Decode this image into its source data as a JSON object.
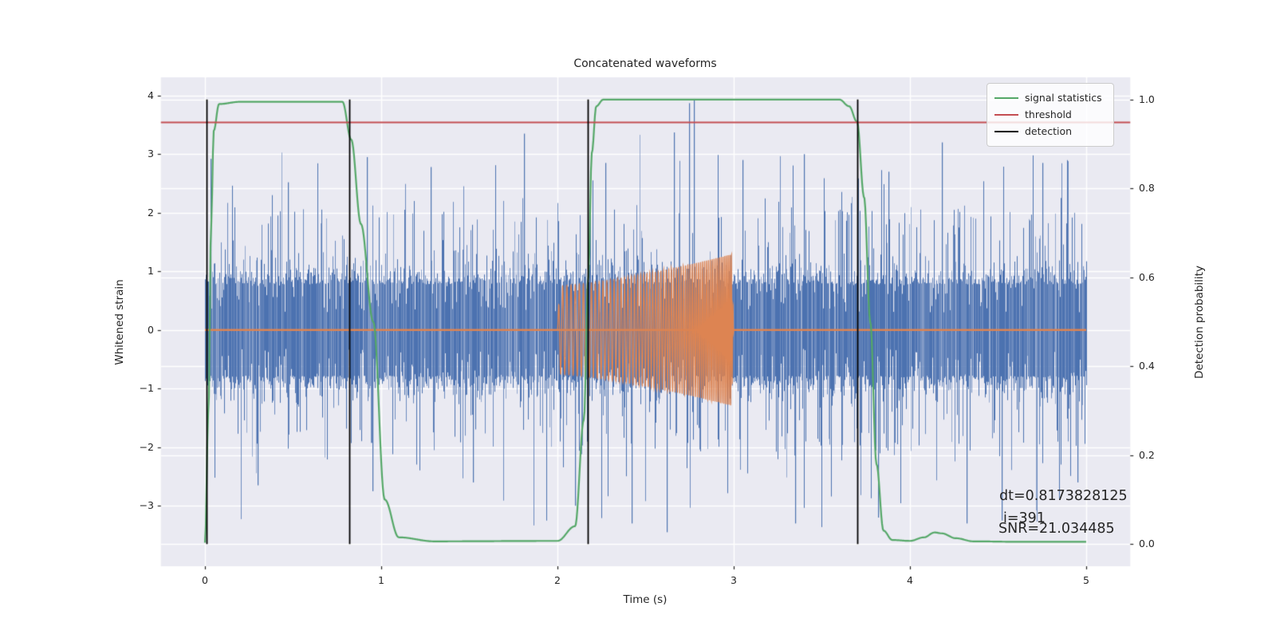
{
  "figure": {
    "title": "Concatenated waveforms",
    "background": "#ffffff",
    "axes_background": "#eaeaf2",
    "grid_color": "#ffffff",
    "text_color": "#262626"
  },
  "axes": {
    "xlabel": "Time (s)",
    "ylabel_left": "Whitened strain",
    "ylabel_right": "Detection probability",
    "x_ticks": [
      0,
      1,
      2,
      3,
      4,
      5
    ],
    "y_ticks_left": [
      4,
      3,
      2,
      1,
      0,
      -1,
      -2,
      -3
    ],
    "y_ticks_right": [
      "1.0",
      "0.8",
      "0.6",
      "0.4",
      "0.2",
      "0.0"
    ],
    "xlim": [
      -0.25,
      5.25
    ],
    "ylim_left": [
      -4.03,
      4.31
    ],
    "ylim_right": [
      -0.05,
      1.05
    ],
    "grid": true
  },
  "legend": {
    "items": [
      {
        "label": "signal statistics",
        "color": "#55a868"
      },
      {
        "label": "threshold",
        "color": "#c44e52"
      },
      {
        "label": "detection",
        "color": "#000000"
      }
    ]
  },
  "annotation": {
    "lines": [
      "dt=0.8173828125",
      "i=391",
      "SNR=21.034485"
    ]
  },
  "chart_data": {
    "type": "line",
    "title": "Concatenated waveforms",
    "xlabel": "Time (s)",
    "ylabel": "Whitened strain",
    "ylabel_right": "Detection probability",
    "xlim": [
      -0.25,
      5.25
    ],
    "ylim_left": [
      -4.03,
      4.31
    ],
    "ylim_right": [
      -0.05,
      1.05
    ],
    "series": [
      {
        "name": "whitened strain",
        "kind": "noise",
        "color": "#4c72b0",
        "t_range": [
          0,
          5
        ],
        "description": "dense whitened gaussian noise, solid core about +/-1.0 with ragged streaks, frequent excursions to +/-2.5, rare to +/-3.9",
        "seed": 1337,
        "feature_spikes_pos": [
          [
            0.03,
            2.92
          ],
          [
            0.47,
            2.52
          ],
          [
            0.92,
            2.95
          ],
          [
            1.28,
            2.78
          ],
          [
            1.81,
            3.35
          ],
          [
            2.27,
            2.85
          ],
          [
            2.66,
            3.37
          ],
          [
            2.745,
            3.87
          ],
          [
            2.775,
            3.93
          ],
          [
            3.05,
            2.9
          ],
          [
            3.4,
            3.0
          ],
          [
            3.88,
            2.7
          ],
          [
            4.18,
            3.2
          ],
          [
            4.75,
            2.85
          ]
        ],
        "feature_spikes_neg": [
          [
            0.3,
            -2.65
          ],
          [
            0.95,
            -2.75
          ],
          [
            1.52,
            -2.6
          ],
          [
            2.1,
            -3.0
          ],
          [
            2.42,
            -3.3
          ],
          [
            2.62,
            -3.45
          ],
          [
            3.35,
            -3.3
          ],
          [
            3.82,
            -3.2
          ],
          [
            4.32,
            -3.3
          ],
          [
            4.52,
            -3.25
          ],
          [
            4.95,
            -2.6
          ]
        ]
      },
      {
        "name": "template waveform",
        "kind": "chirp",
        "color": "#dd8452",
        "baseline_value": 0,
        "baseline_range": [
          0,
          5
        ],
        "t_start": 2.0,
        "t_end": 3.0,
        "amp_start": 0.75,
        "amp_end": 1.3,
        "freq_start_hz": 42,
        "freq_end_hz": 110
      },
      {
        "name": "signal statistics",
        "kind": "prob_curve",
        "color": "#55a868",
        "axis": "right",
        "keypoints": [
          [
            0,
            0.003
          ],
          [
            0.02,
            0.3
          ],
          [
            0.035,
            0.72
          ],
          [
            0.05,
            0.93
          ],
          [
            0.08,
            0.99
          ],
          [
            0.2,
            0.995
          ],
          [
            0.78,
            0.995
          ],
          [
            0.83,
            0.91
          ],
          [
            0.885,
            0.72
          ],
          [
            0.955,
            0.5
          ],
          [
            1.02,
            0.1
          ],
          [
            1.1,
            0.015
          ],
          [
            1.3,
            0.006
          ],
          [
            2.0,
            0.007
          ],
          [
            2.1,
            0.04
          ],
          [
            2.15,
            0.28
          ],
          [
            2.175,
            0.6
          ],
          [
            2.195,
            0.88
          ],
          [
            2.22,
            0.985
          ],
          [
            2.26,
            1.0
          ],
          [
            3.0,
            1.0
          ],
          [
            3.6,
            1.0
          ],
          [
            3.655,
            0.985
          ],
          [
            3.7,
            0.95
          ],
          [
            3.74,
            0.78
          ],
          [
            3.775,
            0.5
          ],
          [
            3.81,
            0.18
          ],
          [
            3.85,
            0.03
          ],
          [
            3.9,
            0.009
          ],
          [
            4.0,
            0.007
          ],
          [
            4.08,
            0.015
          ],
          [
            4.14,
            0.026
          ],
          [
            4.18,
            0.024
          ],
          [
            4.26,
            0.013
          ],
          [
            4.36,
            0.006
          ],
          [
            4.6,
            0.005
          ],
          [
            5.0,
            0.005
          ]
        ]
      },
      {
        "name": "threshold",
        "kind": "hline",
        "color": "#c44e52",
        "axis": "right",
        "value": 0.95
      },
      {
        "name": "detection",
        "kind": "vlines",
        "color": "#000000",
        "axis": "right",
        "times": [
          0.01,
          0.82,
          2.17,
          3.7
        ],
        "span": [
          0.0,
          1.0
        ]
      }
    ]
  }
}
